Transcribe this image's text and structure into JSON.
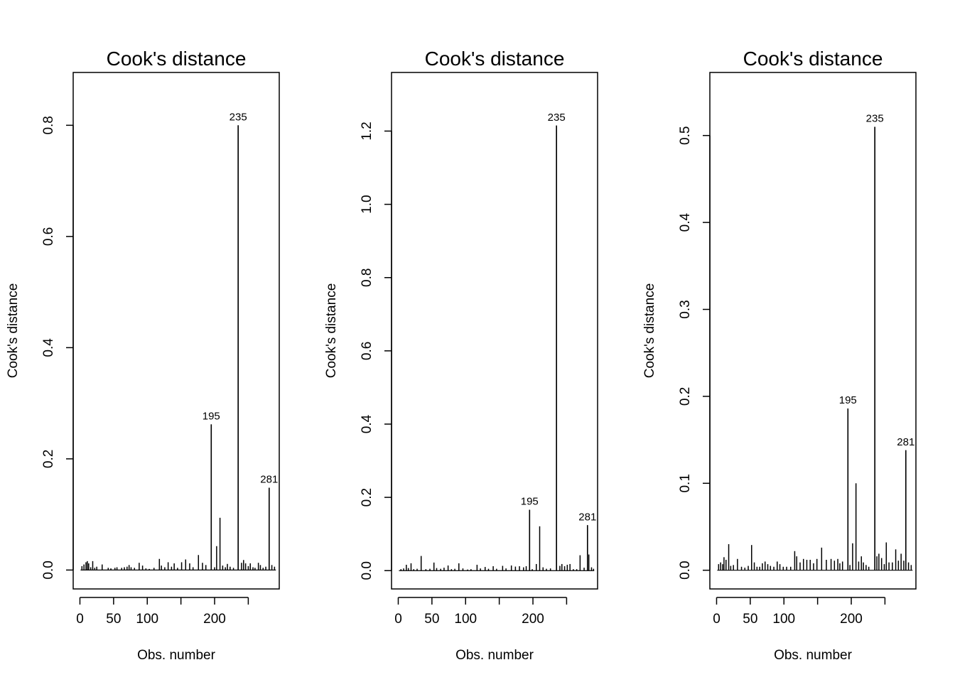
{
  "chart_data": [
    {
      "type": "bar",
      "title": "Cook's distance",
      "xlabel": "Obs. number",
      "ylabel": "Cook's distance",
      "xlim": [
        -10,
        296
      ],
      "ylim": [
        -0.034,
        0.895
      ],
      "xticks": [
        0,
        50,
        100,
        150,
        200,
        250
      ],
      "xtick_labels": [
        "0",
        "50",
        "100",
        "",
        "200",
        ""
      ],
      "yticks": [
        0.0,
        0.2,
        0.4,
        0.6,
        0.8
      ],
      "ytick_labels": [
        "0.0",
        "0.2",
        "0.4",
        "0.6",
        "0.8"
      ],
      "grid": false,
      "labeled_points": [
        {
          "label": "195",
          "x": 195,
          "y": 0.262
        },
        {
          "label": "235",
          "x": 235,
          "y": 0.8
        },
        {
          "label": "281",
          "x": 281,
          "y": 0.148
        }
      ],
      "points": [
        [
          3,
          0.007
        ],
        [
          6,
          0.01
        ],
        [
          9,
          0.014
        ],
        [
          11,
          0.016
        ],
        [
          13,
          0.012
        ],
        [
          16,
          0.005
        ],
        [
          19,
          0.016
        ],
        [
          22,
          0.004
        ],
        [
          25,
          0.006
        ],
        [
          33,
          0.01
        ],
        [
          42,
          0.004
        ],
        [
          46,
          0.003
        ],
        [
          52,
          0.004
        ],
        [
          55,
          0.005
        ],
        [
          62,
          0.004
        ],
        [
          66,
          0.005
        ],
        [
          70,
          0.006
        ],
        [
          73,
          0.009
        ],
        [
          76,
          0.005
        ],
        [
          81,
          0.004
        ],
        [
          88,
          0.013
        ],
        [
          93,
          0.008
        ],
        [
          98,
          0.003
        ],
        [
          103,
          0.002
        ],
        [
          110,
          0.004
        ],
        [
          118,
          0.02
        ],
        [
          121,
          0.008
        ],
        [
          126,
          0.005
        ],
        [
          131,
          0.014
        ],
        [
          136,
          0.006
        ],
        [
          140,
          0.012
        ],
        [
          145,
          0.004
        ],
        [
          151,
          0.014
        ],
        [
          157,
          0.019
        ],
        [
          163,
          0.012
        ],
        [
          168,
          0.005
        ],
        [
          176,
          0.027
        ],
        [
          182,
          0.013
        ],
        [
          187,
          0.009
        ],
        [
          195,
          0.262
        ],
        [
          200,
          0.005
        ],
        [
          203,
          0.043
        ],
        [
          208,
          0.094
        ],
        [
          212,
          0.008
        ],
        [
          216,
          0.005
        ],
        [
          219,
          0.011
        ],
        [
          223,
          0.006
        ],
        [
          228,
          0.004
        ],
        [
          235,
          0.8
        ],
        [
          240,
          0.013
        ],
        [
          243,
          0.018
        ],
        [
          246,
          0.012
        ],
        [
          250,
          0.007
        ],
        [
          253,
          0.012
        ],
        [
          257,
          0.005
        ],
        [
          260,
          0.004
        ],
        [
          265,
          0.013
        ],
        [
          268,
          0.009
        ],
        [
          272,
          0.004
        ],
        [
          276,
          0.006
        ],
        [
          281,
          0.148
        ],
        [
          285,
          0.009
        ],
        [
          289,
          0.006
        ]
      ]
    },
    {
      "type": "bar",
      "title": "Cook's distance",
      "xlabel": "Obs. number",
      "ylabel": "Cook's distance",
      "xlim": [
        -10,
        296
      ],
      "ylim": [
        -0.05,
        1.36
      ],
      "xticks": [
        0,
        50,
        100,
        150,
        200,
        250
      ],
      "xtick_labels": [
        "0",
        "50",
        "100",
        "",
        "200",
        ""
      ],
      "yticks": [
        0.0,
        0.2,
        0.4,
        0.6,
        0.8,
        1.0,
        1.2
      ],
      "ytick_labels": [
        "0.0",
        "0.2",
        "0.4",
        "0.6",
        "0.8",
        "1.0",
        "1.2"
      ],
      "grid": false,
      "labeled_points": [
        {
          "label": "195",
          "x": 195,
          "y": 0.166
        },
        {
          "label": "235",
          "x": 235,
          "y": 1.215
        },
        {
          "label": "281",
          "x": 281,
          "y": 0.124
        }
      ],
      "points": [
        [
          4,
          0.004
        ],
        [
          8,
          0.006
        ],
        [
          12,
          0.016
        ],
        [
          15,
          0.007
        ],
        [
          19,
          0.02
        ],
        [
          23,
          0.004
        ],
        [
          28,
          0.005
        ],
        [
          34,
          0.04
        ],
        [
          41,
          0.004
        ],
        [
          47,
          0.005
        ],
        [
          53,
          0.022
        ],
        [
          57,
          0.007
        ],
        [
          63,
          0.005
        ],
        [
          68,
          0.008
        ],
        [
          74,
          0.014
        ],
        [
          79,
          0.004
        ],
        [
          84,
          0.005
        ],
        [
          90,
          0.02
        ],
        [
          96,
          0.006
        ],
        [
          103,
          0.003
        ],
        [
          108,
          0.004
        ],
        [
          117,
          0.016
        ],
        [
          122,
          0.006
        ],
        [
          129,
          0.01
        ],
        [
          134,
          0.005
        ],
        [
          141,
          0.012
        ],
        [
          146,
          0.005
        ],
        [
          155,
          0.013
        ],
        [
          160,
          0.006
        ],
        [
          168,
          0.014
        ],
        [
          174,
          0.011
        ],
        [
          180,
          0.012
        ],
        [
          186,
          0.009
        ],
        [
          190,
          0.012
        ],
        [
          195,
          0.166
        ],
        [
          199,
          0.004
        ],
        [
          205,
          0.018
        ],
        [
          210,
          0.121
        ],
        [
          215,
          0.009
        ],
        [
          220,
          0.005
        ],
        [
          226,
          0.006
        ],
        [
          235,
          1.215
        ],
        [
          240,
          0.013
        ],
        [
          243,
          0.018
        ],
        [
          247,
          0.012
        ],
        [
          251,
          0.016
        ],
        [
          255,
          0.018
        ],
        [
          260,
          0.004
        ],
        [
          265,
          0.004
        ],
        [
          270,
          0.042
        ],
        [
          276,
          0.008
        ],
        [
          281,
          0.124
        ],
        [
          283,
          0.044
        ],
        [
          287,
          0.009
        ],
        [
          290,
          0.005
        ]
      ]
    },
    {
      "type": "bar",
      "title": "Cook's distance",
      "xlabel": "Obs. number",
      "ylabel": "Cook's distance",
      "xlim": [
        -10,
        296
      ],
      "ylim": [
        -0.0215,
        0.5725
      ],
      "xticks": [
        0,
        50,
        100,
        150,
        200,
        250
      ],
      "xtick_labels": [
        "0",
        "50",
        "100",
        "",
        "200",
        ""
      ],
      "yticks": [
        0.0,
        0.1,
        0.2,
        0.3,
        0.4,
        0.5
      ],
      "ytick_labels": [
        "0.0",
        "0.1",
        "0.2",
        "0.3",
        "0.4",
        "0.5"
      ],
      "grid": false,
      "labeled_points": [
        {
          "label": "195",
          "x": 195,
          "y": 0.186
        },
        {
          "label": "235",
          "x": 235,
          "y": 0.51
        },
        {
          "label": "281",
          "x": 281,
          "y": 0.138
        }
      ],
      "points": [
        [
          3,
          0.007
        ],
        [
          6,
          0.009
        ],
        [
          9,
          0.007
        ],
        [
          11,
          0.015
        ],
        [
          14,
          0.012
        ],
        [
          18,
          0.03
        ],
        [
          21,
          0.005
        ],
        [
          25,
          0.006
        ],
        [
          31,
          0.013
        ],
        [
          37,
          0.004
        ],
        [
          42,
          0.003
        ],
        [
          47,
          0.005
        ],
        [
          52,
          0.029
        ],
        [
          56,
          0.009
        ],
        [
          60,
          0.004
        ],
        [
          64,
          0.004
        ],
        [
          68,
          0.008
        ],
        [
          72,
          0.01
        ],
        [
          76,
          0.007
        ],
        [
          80,
          0.005
        ],
        [
          85,
          0.004
        ],
        [
          90,
          0.01
        ],
        [
          94,
          0.007
        ],
        [
          99,
          0.004
        ],
        [
          104,
          0.004
        ],
        [
          110,
          0.004
        ],
        [
          116,
          0.022
        ],
        [
          119,
          0.016
        ],
        [
          124,
          0.009
        ],
        [
          129,
          0.013
        ],
        [
          134,
          0.012
        ],
        [
          139,
          0.012
        ],
        [
          144,
          0.008
        ],
        [
          149,
          0.013
        ],
        [
          156,
          0.026
        ],
        [
          163,
          0.012
        ],
        [
          170,
          0.013
        ],
        [
          175,
          0.011
        ],
        [
          180,
          0.013
        ],
        [
          183,
          0.008
        ],
        [
          187,
          0.01
        ],
        [
          195,
          0.186
        ],
        [
          198,
          0.006
        ],
        [
          202,
          0.031
        ],
        [
          207,
          0.1
        ],
        [
          211,
          0.01
        ],
        [
          215,
          0.016
        ],
        [
          218,
          0.009
        ],
        [
          222,
          0.006
        ],
        [
          226,
          0.004
        ],
        [
          235,
          0.51
        ],
        [
          238,
          0.016
        ],
        [
          241,
          0.019
        ],
        [
          245,
          0.014
        ],
        [
          249,
          0.007
        ],
        [
          252,
          0.032
        ],
        [
          256,
          0.009
        ],
        [
          261,
          0.009
        ],
        [
          266,
          0.024
        ],
        [
          270,
          0.011
        ],
        [
          274,
          0.019
        ],
        [
          278,
          0.011
        ],
        [
          281,
          0.138
        ],
        [
          285,
          0.009
        ],
        [
          289,
          0.006
        ]
      ]
    }
  ]
}
